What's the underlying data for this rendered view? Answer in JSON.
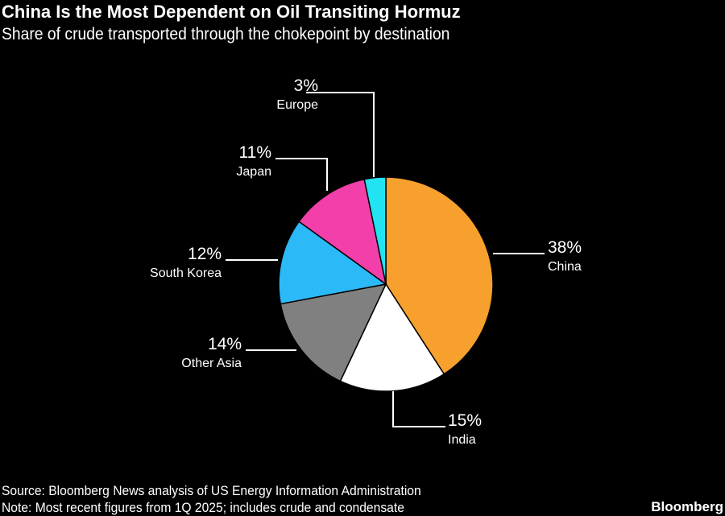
{
  "chart_data": {
    "type": "pie",
    "title": "China Is the Most Dependent on Oil Transiting Hormuz",
    "subtitle": "Share of crude transported through the chokepoint by destination",
    "slices": [
      {
        "label": "China",
        "value": 38,
        "value_label": "38%",
        "color": "#f7a02e"
      },
      {
        "label": "India",
        "value": 15,
        "value_label": "15%",
        "color": "#ffffff"
      },
      {
        "label": "Other Asia",
        "value": 14,
        "value_label": "14%",
        "color": "#808080"
      },
      {
        "label": "South Korea",
        "value": 12,
        "value_label": "12%",
        "color": "#2bb9f7"
      },
      {
        "label": "Japan",
        "value": 11,
        "value_label": "11%",
        "color": "#f23fa9"
      },
      {
        "label": "Europe",
        "value": 3,
        "value_label": "3%",
        "color": "#22e3f2"
      }
    ]
  },
  "footer": {
    "source": "Source: Bloomberg News analysis of US Energy Information Administration",
    "note": "Note: Most recent figures from 1Q 2025; includes crude and condensate",
    "logo": "Bloomberg"
  }
}
